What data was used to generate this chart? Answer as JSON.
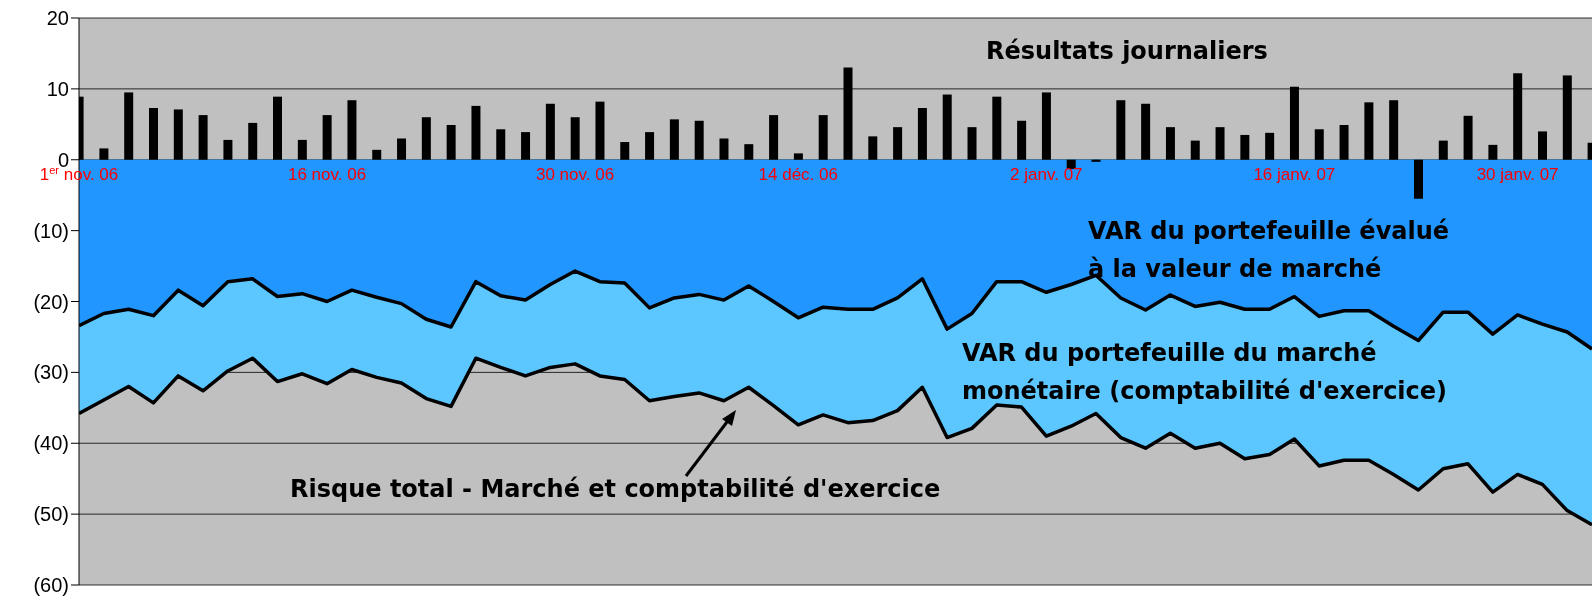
{
  "chart_data": {
    "type": "bar",
    "categories": [
      "1$^{er}$ nov. 06",
      null,
      null,
      null,
      null,
      null,
      null,
      null,
      null,
      null,
      "16 nov. 06",
      null,
      null,
      null,
      null,
      null,
      null,
      null,
      null,
      null,
      "30 nov. 06",
      null,
      null,
      null,
      null,
      null,
      null,
      null,
      null,
      "14 déc. 06",
      null,
      null,
      null,
      null,
      null,
      null,
      null,
      null,
      null,
      "2 janv. 07",
      null,
      null,
      null,
      null,
      null,
      null,
      null,
      null,
      null,
      "16 janv. 07",
      null,
      null,
      null,
      null,
      null,
      null,
      null,
      null,
      "30 janv. 07",
      null,
      null,
      null
    ],
    "series": [
      {
        "name": "Risque total - Marché et comptabilité d'exercice",
        "type": "area",
        "color": "#5cc6ff",
        "values": [
          -35.8,
          -33.9,
          -32.0,
          -34.3,
          -30.5,
          -32.6,
          -29.8,
          -28.0,
          -31.3,
          -30.2,
          -31.6,
          -29.6,
          -30.7,
          -31.5,
          -33.7,
          -34.8,
          -28.0,
          -29.3,
          -30.5,
          -29.3,
          -28.8,
          -30.5,
          -31.0,
          -34.0,
          -33.4,
          -32.9,
          -34.0,
          -32.1,
          -34.7,
          -37.4,
          -36.0,
          -37.1,
          -36.8,
          -35.4,
          -32.1,
          -39.2,
          -37.9,
          -34.6,
          -34.9,
          -39.0,
          -37.6,
          -35.8,
          -39.2,
          -40.7,
          -38.6,
          -40.7,
          -40.0,
          -42.2,
          -41.6,
          -39.4,
          -43.2,
          -42.4,
          -42.4,
          -44.4,
          -46.6,
          -43.6,
          -42.9,
          -46.9,
          -44.4,
          -45.8,
          -49.5,
          -51.5
        ]
      },
      {
        "name": "VAR du portefeuille évalué à la valeur de marché",
        "type": "area",
        "color": "#2196ff",
        "values": [
          -23.4,
          -21.7,
          -21.1,
          -22.0,
          -18.4,
          -20.6,
          -17.2,
          -16.8,
          -19.3,
          -18.9,
          -20.0,
          -18.4,
          -19.4,
          -20.3,
          -22.5,
          -23.6,
          -17.2,
          -19.2,
          -19.8,
          -17.6,
          -15.7,
          -17.2,
          -17.4,
          -20.9,
          -19.5,
          -19.0,
          -19.8,
          -17.8,
          -20.0,
          -22.3,
          -20.8,
          -21.1,
          -21.1,
          -19.5,
          -16.8,
          -23.9,
          -21.7,
          -17.2,
          -17.2,
          -18.7,
          -17.6,
          -16.3,
          -19.5,
          -21.2,
          -19.1,
          -20.7,
          -20.1,
          -21.1,
          -21.1,
          -19.3,
          -22.1,
          -21.3,
          -21.3,
          -23.5,
          -25.5,
          -21.5,
          -21.5,
          -24.6,
          -21.9,
          -23.2,
          -24.3,
          -26.7
        ]
      },
      {
        "name": "Résultats journaliers",
        "color": "#000000",
        "values": [
          8.9,
          1.6,
          9.5,
          7.3,
          7.1,
          6.3,
          2.8,
          5.2,
          8.9,
          2.8,
          6.3,
          8.4,
          1.4,
          3.0,
          6.0,
          4.9,
          7.6,
          4.3,
          3.9,
          7.9,
          6.0,
          8.2,
          2.5,
          3.9,
          5.7,
          5.5,
          3.0,
          2.2,
          6.3,
          0.9,
          6.3,
          13.0,
          3.3,
          4.6,
          7.3,
          9.2,
          4.6,
          8.9,
          5.5,
          9.5,
          -1.3,
          -0.3,
          8.4,
          7.9,
          4.6,
          2.7,
          4.6,
          3.5,
          3.8,
          10.3,
          4.3,
          4.9,
          8.1,
          8.4,
          -5.5,
          2.7,
          6.2,
          2.1,
          12.2,
          4.0,
          11.9,
          2.4
        ]
      }
    ],
    "annotations": [
      "VAR du portefeuille du marché monétaire (comptabilité d'exercice)"
    ],
    "ylim": [
      -60,
      20
    ],
    "yticks": [
      20,
      10,
      0,
      {
        "value": -10,
        "label": "(10)"
      },
      {
        "value": -20,
        "label": "(20)"
      },
      {
        "value": -30,
        "label": "(30)"
      },
      {
        "value": -40,
        "label": "(40)"
      },
      {
        "value": -50,
        "label": "(50)"
      },
      {
        "value": -60,
        "label": "(60)"
      }
    ],
    "grid": "y",
    "legend": false
  }
}
